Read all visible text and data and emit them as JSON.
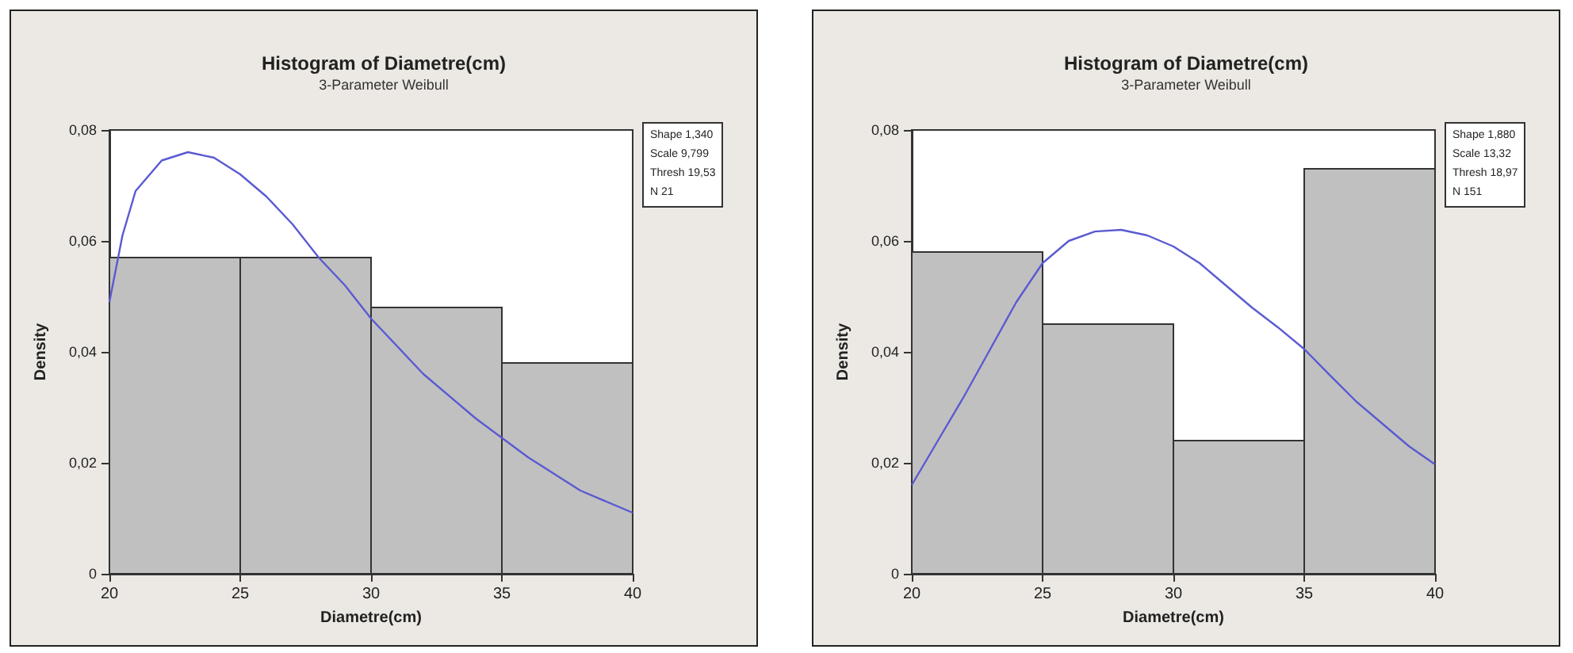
{
  "chart_data": [
    {
      "type": "histogram",
      "title": "Histogram of Diametre(cm)",
      "subtitle": "3-Parameter Weibull",
      "xlabel": "Diametre(cm)",
      "ylabel": "Density",
      "bins": [
        20,
        25,
        30,
        35,
        40
      ],
      "series": [
        {
          "color": "#c0c0c0",
          "values": [
            0.057,
            0.057,
            0.048,
            0.038
          ]
        },
        {
          "type": "line",
          "color": "#5a5ad2",
          "x": [
            20,
            20.5,
            21,
            22,
            23,
            24,
            25,
            26,
            27,
            28,
            29,
            30,
            32,
            34,
            36,
            38,
            40
          ],
          "values": [
            0.049,
            0.061,
            0.069,
            0.0745,
            0.076,
            0.075,
            0.072,
            0.068,
            0.063,
            0.057,
            0.052,
            0.046,
            0.036,
            0.028,
            0.021,
            0.015,
            0.011
          ]
        }
      ],
      "xlim": [
        20,
        40
      ],
      "xticks": [
        20,
        25,
        30,
        35,
        40
      ],
      "ylim": [
        0,
        0.08
      ],
      "yticks": [
        0,
        {
          "value": 0.02,
          "label": "0,02"
        },
        {
          "value": 0.04,
          "label": "0,04"
        },
        {
          "value": 0.06,
          "label": "0,06"
        },
        {
          "value": 0.08,
          "label": "0,08"
        }
      ],
      "annotations": [
        "Shape 1,340",
        "Scale 9,799",
        "Thresh 19,53",
        "N 21"
      ]
    },
    {
      "type": "histogram",
      "title": "Histogram of Diametre(cm)",
      "subtitle": "3-Parameter Weibull",
      "xlabel": "Diametre(cm)",
      "ylabel": "Density",
      "bins": [
        20,
        25,
        30,
        35,
        40
      ],
      "series": [
        {
          "color": "#c0c0c0",
          "values": [
            0.058,
            0.045,
            0.024,
            0.073
          ]
        },
        {
          "type": "line",
          "color": "#5a5ad2",
          "x": [
            20,
            21,
            22,
            23,
            24,
            25,
            26,
            27,
            28,
            29,
            30,
            31,
            32,
            33,
            34,
            35,
            36,
            37,
            38,
            39,
            40
          ],
          "values": [
            0.016,
            0.024,
            0.032,
            0.0405,
            0.049,
            0.056,
            0.06,
            0.0617,
            0.062,
            0.061,
            0.059,
            0.056,
            0.052,
            0.048,
            0.0444,
            0.0405,
            0.0357,
            0.031,
            0.027,
            0.023,
            0.0197
          ]
        }
      ],
      "xlim": [
        20,
        40
      ],
      "xticks": [
        20,
        25,
        30,
        35,
        40
      ],
      "ylim": [
        0,
        0.08
      ],
      "yticks": [
        0,
        {
          "value": 0.02,
          "label": "0,02"
        },
        {
          "value": 0.04,
          "label": "0,04"
        },
        {
          "value": 0.06,
          "label": "0,06"
        },
        {
          "value": 0.08,
          "label": "0,08"
        }
      ],
      "annotations": [
        "Shape 1,880",
        "Scale 13,32",
        "Thresh 18,97",
        "N 151"
      ]
    }
  ]
}
